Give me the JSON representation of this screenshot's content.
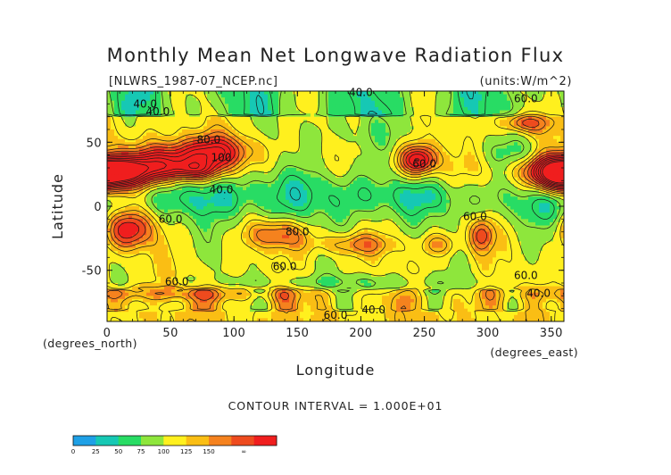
{
  "chart_data": {
    "type": "heatmap",
    "title": "Monthly Mean Net Longwave Radiation Flux",
    "file_label": "[NLWRS_1987-07_NCEP.nc]",
    "units_label": "(units:W/m^2)",
    "xlabel": "Longitude",
    "ylabel": "Latitude",
    "x_units_label": "(degrees_east)",
    "y_units_label": "(degrees_north)",
    "xlim": [
      0,
      360
    ],
    "ylim": [
      -90,
      90
    ],
    "x_ticks": [
      0,
      50,
      100,
      150,
      200,
      250,
      300,
      350
    ],
    "y_ticks": [
      50,
      0,
      -50
    ],
    "contour_interval_label": "CONTOUR INTERVAL = 1.000E+01",
    "contour_labels": [
      {
        "text": "40.0",
        "x": 30,
        "y": 80
      },
      {
        "text": "40.0",
        "x": 40,
        "y": 74
      },
      {
        "text": "40.0",
        "x": 200,
        "y": 89
      },
      {
        "text": "60.0",
        "x": 330,
        "y": 84
      },
      {
        "text": "80.0",
        "x": 80,
        "y": 52
      },
      {
        "text": "100",
        "x": 90,
        "y": 38
      },
      {
        "text": "40.0",
        "x": 90,
        "y": 13
      },
      {
        "text": "60.0",
        "x": 50,
        "y": -10
      },
      {
        "text": "80.0",
        "x": 150,
        "y": -20
      },
      {
        "text": "60.0",
        "x": 250,
        "y": 33
      },
      {
        "text": "60.0",
        "x": 290,
        "y": -8
      },
      {
        "text": "60.0",
        "x": 330,
        "y": -54
      },
      {
        "text": "40.0",
        "x": 340,
        "y": -68
      },
      {
        "text": "60.0",
        "x": 140,
        "y": -47
      },
      {
        "text": "60.0",
        "x": 55,
        "y": -59
      },
      {
        "text": "60.0",
        "x": 180,
        "y": -85
      },
      {
        "text": "40.0",
        "x": 210,
        "y": -81
      }
    ],
    "colorbar": {
      "colors": [
        "#1ea0e6",
        "#16c8b4",
        "#28dc64",
        "#8ee63c",
        "#fff01e",
        "#fabe14",
        "#f5821e",
        "#ee4b1e",
        "#f01e1e"
      ],
      "tick_labels": [
        "0",
        "25",
        "50",
        "75",
        "100",
        "125",
        "150",
        "∞"
      ]
    }
  }
}
